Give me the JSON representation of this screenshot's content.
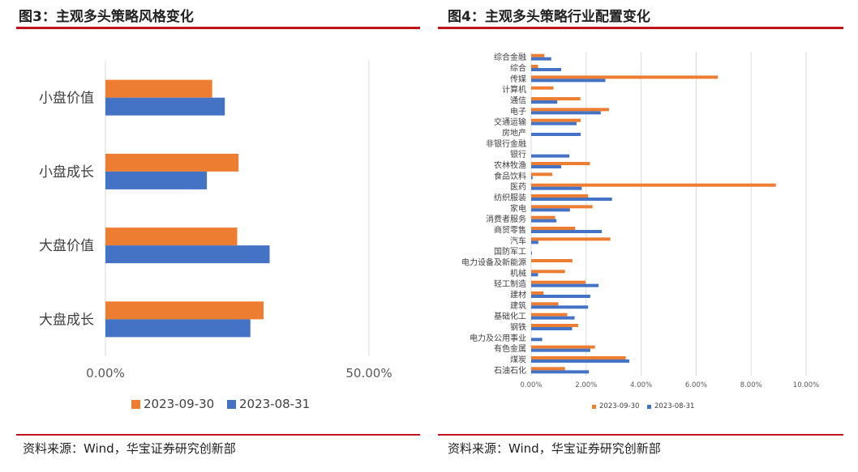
{
  "left": {
    "title": "图3：主观多头策略风格变化",
    "source": "资料来源：Wind，华宝证券研究创新部"
  },
  "right": {
    "title": "图4：主观多头策略行业配置变化",
    "source": "资料来源：Wind，华宝证券研究创新部"
  },
  "colors": {
    "orange": "#ed7d31",
    "blue": "#4472c4",
    "grid": "#d9d9d9",
    "accent": "#c0121a"
  },
  "chart_data": [
    {
      "type": "bar",
      "orientation": "horizontal",
      "title": "",
      "categories": [
        "小盘价值",
        "小盘成长",
        "大盘价值",
        "大盘成长"
      ],
      "series": [
        {
          "name": "2023-09-30",
          "color": "#ed7d31",
          "values": [
            0.2025,
            0.2525,
            0.25,
            0.3
          ]
        },
        {
          "name": "2023-08-31",
          "color": "#4472c4",
          "values": [
            0.2265,
            0.1925,
            0.3115,
            0.275
          ]
        }
      ],
      "xlim": [
        0,
        0.5
      ],
      "x_ticks": [
        "0.00%",
        "50.00%"
      ],
      "x_tick_values": [
        0,
        0.5
      ],
      "grid": true,
      "legend": "bottom"
    },
    {
      "type": "bar",
      "orientation": "horizontal",
      "title": "",
      "categories": [
        "综合金融",
        "综合",
        "传媒",
        "计算机",
        "通信",
        "电子",
        "交通运输",
        "房地产",
        "非银行金融",
        "银行",
        "农林牧渔",
        "食品饮料",
        "医药",
        "纺织服装",
        "家电",
        "消费者服务",
        "商贸零售",
        "汽车",
        "国防军工",
        "电力设备及新能源",
        "机械",
        "轻工制造",
        "建材",
        "建筑",
        "基础化工",
        "钢铁",
        "电力及公用事业",
        "有色金属",
        "煤炭",
        "石油石化"
      ],
      "series": [
        {
          "name": "2023-09-30",
          "color": "#ed7d31",
          "values": [
            0.0048,
            0.0025,
            0.0679,
            0.0081,
            0.0179,
            0.0283,
            0.018,
            0,
            0,
            0,
            0.0214,
            0.0077,
            0.089,
            0.0207,
            0.0223,
            0.0087,
            0.016,
            0.0288,
            0,
            0.015,
            0.0123,
            0.0198,
            0.0045,
            0.0099,
            0.0131,
            0.0171,
            0,
            0.0232,
            0.0344,
            0.0123
          ]
        },
        {
          "name": "2023-08-31",
          "color": "#4472c4",
          "values": [
            0.0073,
            0.0109,
            0.027,
            0,
            0.0095,
            0.0253,
            0.0165,
            0.018,
            0,
            0.0139,
            0.0109,
            0.0005,
            0.0184,
            0.0294,
            0.0141,
            0.0092,
            0.0257,
            0.0026,
            0.0003,
            0,
            0.0025,
            0.0245,
            0.0215,
            0.0207,
            0.0158,
            0.0149,
            0.004,
            0.0215,
            0.0357,
            0.021
          ]
        }
      ],
      "xlim": [
        0,
        0.1
      ],
      "x_ticks": [
        "0.00%",
        "2.00%",
        "4.00%",
        "6.00%",
        "8.00%",
        "10.00%"
      ],
      "x_tick_values": [
        0,
        0.02,
        0.04,
        0.06,
        0.08,
        0.1
      ],
      "grid": true,
      "legend": "bottom"
    }
  ]
}
